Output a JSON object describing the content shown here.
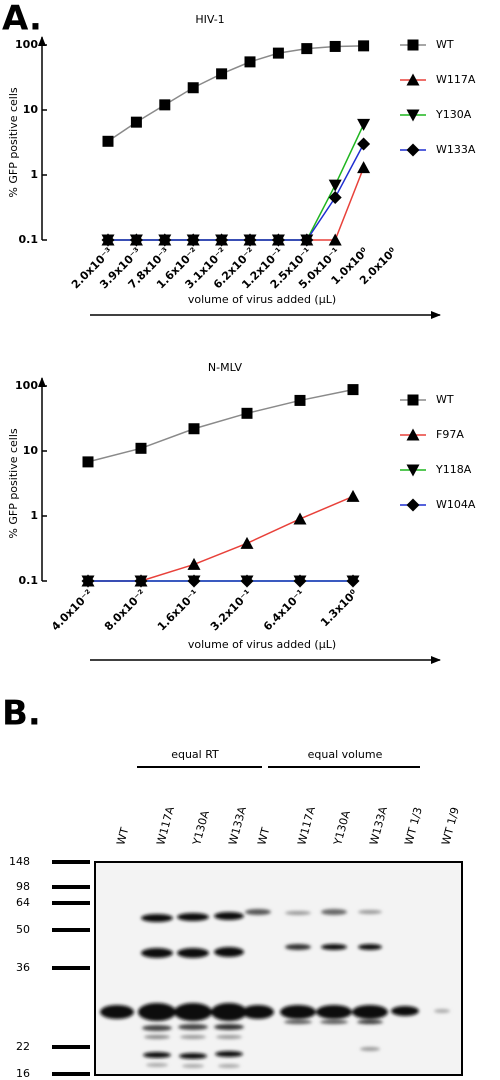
{
  "panel_labels": [
    "A.",
    "B."
  ],
  "chart_data": [
    {
      "type": "line",
      "title": "HIV-1",
      "y_label": "% GFP positive cells",
      "x_label": "volume of virus added  (µL)",
      "yscale": "log",
      "ylim": [
        0.1,
        100
      ],
      "yticks": [
        0.1,
        1,
        10,
        100
      ],
      "categories": [
        "2.0x10⁻³",
        "3.9x10⁻³",
        "7.8x10⁻³",
        "1.6x10⁻²",
        "3.1x10⁻²",
        "6.2x10⁻²",
        "1.2x10⁻¹",
        "2.5x10⁻¹",
        "5.0x10⁻¹",
        "1.0x10⁰",
        "2.0x10⁰"
      ],
      "series": [
        {
          "name": "WT",
          "color": "#000000",
          "line_color": "#8a8a8a",
          "marker": "square",
          "values": [
            3.3,
            6.5,
            12,
            22,
            36,
            55,
            75,
            88,
            95,
            97,
            null
          ]
        },
        {
          "name": "W117A",
          "color": "#e8413a",
          "marker": "triangle-up",
          "values": [
            0.1,
            0.1,
            0.1,
            0.1,
            0.1,
            0.1,
            0.1,
            0.1,
            0.1,
            1.3,
            null
          ]
        },
        {
          "name": "Y130A",
          "color": "#1fb51f",
          "marker": "triangle-down",
          "values": [
            0.1,
            0.1,
            0.1,
            0.1,
            0.1,
            0.1,
            0.1,
            0.1,
            0.7,
            6,
            null
          ]
        },
        {
          "name": "W133A",
          "color": "#1f2fd1",
          "marker": "diamond",
          "values": [
            0.1,
            0.1,
            0.1,
            0.1,
            0.1,
            0.1,
            0.1,
            0.1,
            0.45,
            3,
            null
          ]
        }
      ]
    },
    {
      "type": "line",
      "title": "N-MLV",
      "y_label": "% GFP positive cells",
      "x_label": "volume of virus added  (µL)",
      "yscale": "log",
      "ylim": [
        0.1,
        100
      ],
      "yticks": [
        0.1,
        1,
        10,
        100
      ],
      "categories": [
        "4.0x10⁻²",
        "8.0x10⁻²",
        "1.6x10⁻¹",
        "3.2x10⁻¹",
        "6.4x10⁻¹",
        "1.3x10⁰"
      ],
      "series": [
        {
          "name": "WT",
          "color": "#000000",
          "line_color": "#8a8a8a",
          "marker": "square",
          "values": [
            6.8,
            11,
            22,
            38,
            60,
            88
          ]
        },
        {
          "name": "F97A",
          "color": "#e8413a",
          "marker": "triangle-up",
          "values": [
            0.1,
            0.1,
            0.18,
            0.38,
            0.9,
            2.0
          ]
        },
        {
          "name": "Y118A",
          "color": "#1fb51f",
          "marker": "triangle-down",
          "values": [
            0.1,
            0.1,
            0.1,
            0.1,
            0.1,
            0.1
          ]
        },
        {
          "name": "W104A",
          "color": "#1f2fd1",
          "marker": "diamond",
          "values": [
            0.1,
            0.1,
            0.1,
            0.1,
            0.1,
            0.1
          ]
        }
      ]
    }
  ],
  "blot": {
    "group_labels": [
      "equal RT",
      "equal volume"
    ],
    "lane_labels": [
      "WT",
      "W117A",
      "Y130A",
      "W133A",
      "WT",
      "W117A",
      "Y130A",
      "W133A",
      "WT  1/3",
      "WT  1/9"
    ],
    "markers": [
      148,
      98,
      64,
      50,
      36,
      22,
      16
    ]
  }
}
